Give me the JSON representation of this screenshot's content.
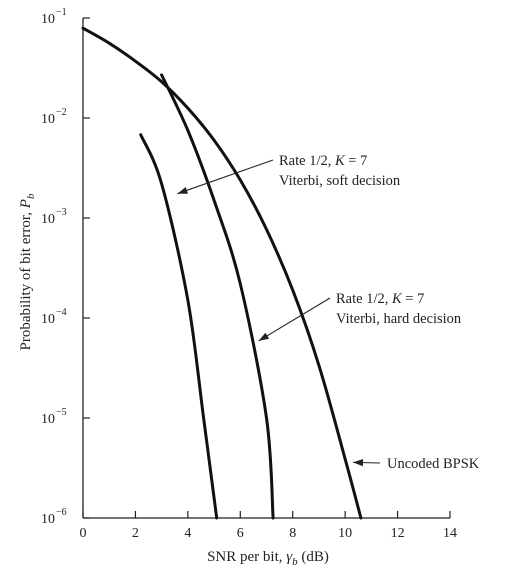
{
  "chart_data": {
    "type": "line",
    "xlabel_main": "SNR per bit, ",
    "xlabel_sym": "γ",
    "xlabel_sub": "b",
    "xlabel_unit": " (dB)",
    "ylabel_main": "Probability of bit error, ",
    "ylabel_sym": "P",
    "ylabel_sub": "b",
    "xlim": [
      0,
      14
    ],
    "ylim": [
      1e-06,
      0.1
    ],
    "yscale": "log",
    "x_ticks": [
      "0",
      "2",
      "4",
      "6",
      "8",
      "10",
      "12",
      "14"
    ],
    "y_ticks": [
      {
        "base": "10",
        "exp": "−1",
        "value": 0.1
      },
      {
        "base": "10",
        "exp": "−2",
        "value": 0.01
      },
      {
        "base": "10",
        "exp": "−3",
        "value": 0.001
      },
      {
        "base": "10",
        "exp": "−4",
        "value": 0.0001
      },
      {
        "base": "10",
        "exp": "−5",
        "value": 1e-05
      },
      {
        "base": "10",
        "exp": "−6",
        "value": 1e-06
      }
    ],
    "series": [
      {
        "name": "Uncoded BPSK",
        "points": [
          [
            0,
            0.079
          ],
          [
            1,
            0.056
          ],
          [
            2,
            0.037
          ],
          [
            3,
            0.023
          ],
          [
            4,
            0.0125
          ],
          [
            5,
            0.006
          ],
          [
            6,
            0.0024
          ],
          [
            7,
            0.00077
          ],
          [
            8,
            0.00019
          ],
          [
            9,
            3.36e-05
          ],
          [
            10,
            3.9e-06
          ],
          [
            10.6,
            1e-06
          ]
        ]
      },
      {
        "name": "Rate 1/2, K = 7 Viterbi, hard decision",
        "points": [
          [
            3.0,
            0.027
          ],
          [
            4.0,
            0.0075
          ],
          [
            5.0,
            0.0015
          ],
          [
            6.0,
            0.00022
          ],
          [
            7.0,
            1e-05
          ],
          [
            7.25,
            1e-06
          ]
        ]
      },
      {
        "name": "Rate 1/2, K = 7 Viterbi, soft decision",
        "points": [
          [
            2.2,
            0.0068
          ],
          [
            3.0,
            0.0022
          ],
          [
            4.0,
            0.00015
          ],
          [
            4.6,
            1e-05
          ],
          [
            5.1,
            1e-06
          ]
        ]
      }
    ],
    "annotations": [
      {
        "line1_a": "Rate 1/2, ",
        "line1_k": "K",
        "line1_b": " = 7",
        "line2": "Viterbi, soft decision",
        "target_series": 2
      },
      {
        "line1_a": "Rate 1/2, ",
        "line1_k": "K",
        "line1_b": " = 7",
        "line2": "Viterbi, hard decision",
        "target_series": 1
      },
      {
        "line1_a": "Uncoded BPSK",
        "line1_k": "",
        "line1_b": "",
        "line2": "",
        "target_series": 0
      }
    ]
  }
}
